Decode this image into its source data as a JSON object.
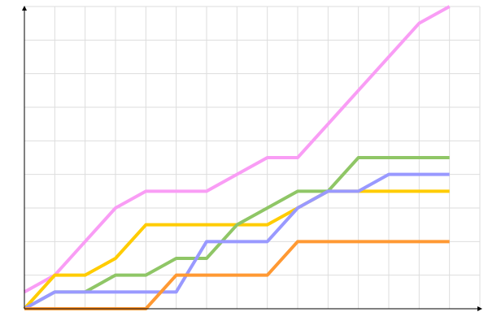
{
  "chart_data": {
    "type": "line",
    "x": [
      0,
      1,
      2,
      3,
      4,
      5,
      6,
      7,
      8,
      9,
      10,
      11,
      12,
      13,
      14
    ],
    "xlim": [
      0,
      15
    ],
    "ylim": [
      0,
      9
    ],
    "xticks": [
      0,
      1,
      2,
      3,
      4,
      5,
      6,
      7,
      8,
      9,
      10,
      11,
      12,
      13,
      14,
      15
    ],
    "yticks": [
      0,
      1,
      2,
      3,
      4,
      5,
      6,
      7,
      8,
      9
    ],
    "grid": true,
    "series": [
      {
        "color": "#f99df5",
        "values": [
          0.5,
          1,
          2,
          3,
          3.5,
          3.5,
          3.5,
          4,
          4.5,
          4.5,
          5.5,
          6.5,
          7.5,
          8.5,
          9
        ]
      },
      {
        "color": "#ffcc00",
        "values": [
          0,
          1,
          1,
          1.5,
          2.5,
          2.5,
          2.5,
          2.5,
          2.5,
          3,
          3.5,
          3.5,
          3.5,
          3.5,
          3.5
        ]
      },
      {
        "color": "#8fc666",
        "values": [
          0,
          0.5,
          0.5,
          1,
          1,
          1.5,
          1.5,
          2.5,
          3,
          3.5,
          3.5,
          4.5,
          4.5,
          4.5,
          4.5
        ]
      },
      {
        "color": "#9999ff",
        "values": [
          0,
          0.5,
          0.5,
          0.5,
          0.5,
          0.5,
          2,
          2,
          2,
          3,
          3.5,
          3.5,
          4,
          4,
          4
        ]
      },
      {
        "color": "#ff9933",
        "values": [
          0,
          0,
          0,
          0,
          0,
          1,
          1,
          1,
          1,
          2,
          2,
          2,
          2,
          2,
          2
        ]
      }
    ]
  }
}
